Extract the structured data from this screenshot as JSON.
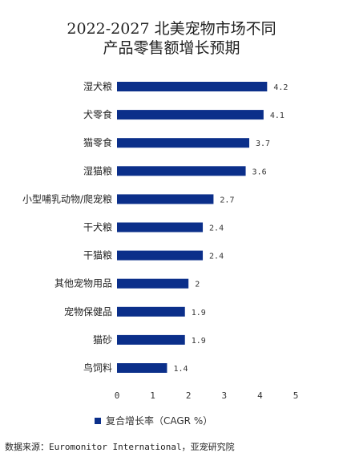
{
  "title_line1": "2022-2027 北美宠物市场不同",
  "title_line2": "产品零售额增长预期",
  "legend_label": "复合增长率（CAGR %）",
  "source": "数据来源：Euromonitor International，亚宠研究院",
  "bar_color": "#0b2f8a",
  "chart_data": {
    "type": "bar",
    "orientation": "horizontal",
    "title": "2022-2027 北美宠物市场不同 产品零售额增长预期",
    "categories": [
      "湿犬粮",
      "犬零食",
      "猫零食",
      "湿猫粮",
      "小型哺乳动物/爬宠粮",
      "干犬粮",
      "干猫粮",
      "其他宠物用品",
      "宠物保健品",
      "猫砂",
      "鸟饲料"
    ],
    "series": [
      {
        "name": "复合增长率（CAGR %）",
        "values": [
          4.2,
          4.1,
          3.7,
          3.6,
          2.7,
          2.4,
          2.4,
          2,
          1.9,
          1.9,
          1.4
        ]
      }
    ],
    "data_labels": [
      "4.2",
      "4.1",
      "3.7",
      "3.6",
      "2.7",
      "2.4",
      "2.4",
      "2",
      "1.9",
      "1.9",
      "1.4"
    ],
    "xlim": [
      0,
      5
    ],
    "xticks": [
      "0",
      "1",
      "2",
      "3",
      "4",
      "5"
    ],
    "grid": false,
    "legend_position": "bottom"
  }
}
